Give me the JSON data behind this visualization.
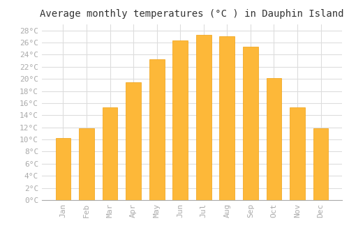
{
  "title": "Average monthly temperatures (°C ) in Dauphin Island",
  "months": [
    "Jan",
    "Feb",
    "Mar",
    "Apr",
    "May",
    "Jun",
    "Jul",
    "Aug",
    "Sep",
    "Oct",
    "Nov",
    "Dec"
  ],
  "values": [
    10.2,
    11.8,
    15.3,
    19.4,
    23.2,
    26.4,
    27.3,
    27.0,
    25.3,
    20.1,
    15.3,
    11.8
  ],
  "bar_color": "#FDB839",
  "bar_edge_color": "#F0A010",
  "background_color": "#FFFFFF",
  "plot_bg_color": "#FFFFFF",
  "grid_color": "#DDDDDD",
  "tick_color": "#AAAAAA",
  "title_color": "#333333",
  "ylim": [
    0,
    29
  ],
  "ytick_step": 2,
  "title_fontsize": 10,
  "tick_fontsize": 8,
  "font_family": "monospace",
  "bar_width": 0.65
}
